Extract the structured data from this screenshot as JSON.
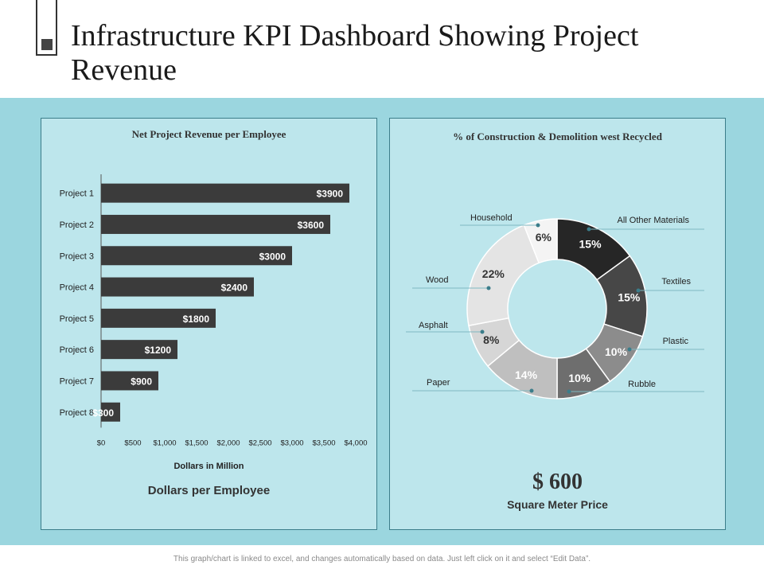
{
  "page": {
    "title": "Infrastructure KPI Dashboard Showing Project Revenue",
    "footer": "This graph/chart is linked to excel, and changes automatically based on data. Just left click on it and select “Edit Data”."
  },
  "left_panel": {
    "title": "Net Project Revenue per Employee",
    "x_title": "Dollars in Million",
    "subtitle": "Dollars per Employee"
  },
  "right_panel": {
    "title": "% of Construction & Demolition west Recycled",
    "price_value": "$ 600",
    "price_label": "Square Meter Price"
  },
  "colors": {
    "bar": "#3b3b3b",
    "panel_bg": "#bde6ec",
    "band_bg": "#9bd6df",
    "accent": "#3b7d8a"
  },
  "chart_data": [
    {
      "type": "bar",
      "orientation": "horizontal",
      "title": "Net Project Revenue per Employee",
      "xlabel": "Dollars in Million",
      "categories": [
        "Project 1",
        "Project 2",
        "Project 3",
        "Project 4",
        "Project 5",
        "Project 6",
        "Project 7",
        "Project 8"
      ],
      "values": [
        3900,
        3600,
        3000,
        2400,
        1800,
        1200,
        900,
        300
      ],
      "data_labels": [
        "$3900",
        "$3600",
        "$3000",
        "$2400",
        "$1800",
        "$1200",
        "$900",
        "$300"
      ],
      "xlim": [
        0,
        4000
      ],
      "x_ticks": [
        0,
        500,
        1000,
        1500,
        2000,
        2500,
        3000,
        3500,
        4000
      ],
      "x_tick_labels": [
        "$0",
        "$500",
        "$1,000",
        "$1,500",
        "$2,000",
        "$2,500",
        "$3,000",
        "$3,500",
        "$4,000"
      ]
    },
    {
      "type": "pie",
      "variant": "donut",
      "title": "% of Construction & Demolition west Recycled",
      "slices": [
        {
          "label": "All Other Materials",
          "value": 15,
          "display": "15%",
          "color": "#262626",
          "text_color": "#ffffff"
        },
        {
          "label": "Textiles",
          "value": 15,
          "display": "15%",
          "color": "#474747",
          "text_color": "#ffffff"
        },
        {
          "label": "Plastic",
          "value": 10,
          "display": "10%",
          "color": "#8c8c8c",
          "text_color": "#ffffff"
        },
        {
          "label": "Rubble",
          "value": 10,
          "display": "10%",
          "color": "#6e6e6e",
          "text_color": "#ffffff"
        },
        {
          "label": "Paper",
          "value": 14,
          "display": "14%",
          "color": "#bfbfbf",
          "text_color": "#ffffff"
        },
        {
          "label": "Asphalt",
          "value": 8,
          "display": "8%",
          "color": "#d6d6d6",
          "text_color": "#333333"
        },
        {
          "label": "Wood",
          "value": 22,
          "display": "22%",
          "color": "#e4e4e4",
          "text_color": "#333333"
        },
        {
          "label": "Household",
          "value": 6,
          "display": "6%",
          "color": "#f4f4f4",
          "text_color": "#333333"
        }
      ]
    }
  ]
}
